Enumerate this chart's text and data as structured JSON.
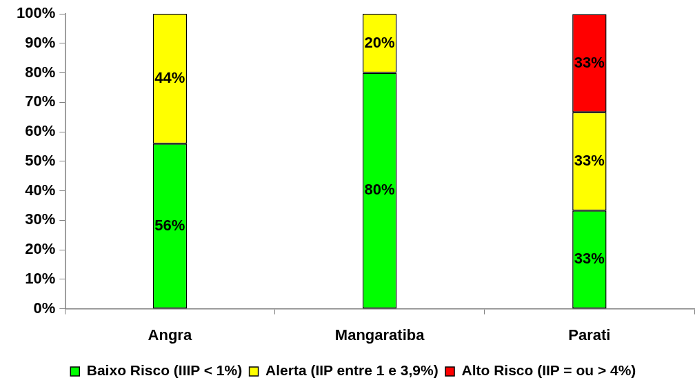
{
  "chart_data": {
    "type": "bar",
    "stacked": true,
    "categories": [
      "Angra",
      "Mangaratiba",
      "Parati"
    ],
    "series": [
      {
        "name": "Baixo Risco (IIIP < 1%)",
        "color": "#00ff00",
        "values": [
          56,
          80,
          33.3
        ],
        "value_labels": [
          "56%",
          "80%",
          "33%"
        ]
      },
      {
        "name": "Alerta (IIP entre 1 e 3,9%)",
        "color": "#ffff00",
        "values": [
          44,
          20,
          33.3
        ],
        "value_labels": [
          "44%",
          "20%",
          "33%"
        ]
      },
      {
        "name": "Alto Risco (IIP = ou > 4%)",
        "color": "#ff0000",
        "values": [
          null,
          null,
          33.3
        ],
        "value_labels": [
          null,
          null,
          "33%"
        ]
      }
    ],
    "ylim": [
      0,
      100
    ],
    "yticks": [
      {
        "value": 0,
        "label": "0%"
      },
      {
        "value": 10,
        "label": "10%"
      },
      {
        "value": 20,
        "label": "20%"
      },
      {
        "value": 30,
        "label": "30%"
      },
      {
        "value": 40,
        "label": "40%"
      },
      {
        "value": 50,
        "label": "50%"
      },
      {
        "value": 60,
        "label": "60%"
      },
      {
        "value": 70,
        "label": "70%"
      },
      {
        "value": 80,
        "label": "80%"
      },
      {
        "value": 90,
        "label": "90%"
      },
      {
        "value": 100,
        "label": "100%"
      }
    ],
    "grid": false,
    "legend": "bottom"
  }
}
